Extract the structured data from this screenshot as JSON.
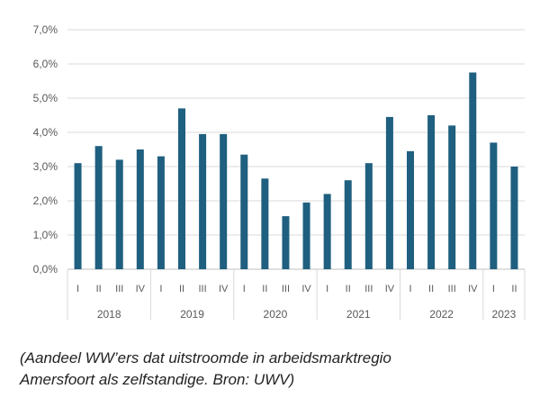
{
  "chart_data": {
    "type": "bar",
    "ytick_labels": [
      "0,0%",
      "1,0%",
      "2,0%",
      "3,0%",
      "4,0%",
      "5,0%",
      "6,0%",
      "7,0%"
    ],
    "ylim": [
      0,
      7
    ],
    "grid": true,
    "bar_color": "#1f5f7f",
    "groups": [
      {
        "label": "2018",
        "categories": [
          "I",
          "II",
          "III",
          "IV"
        ],
        "values": [
          3.1,
          3.6,
          3.2,
          3.5
        ]
      },
      {
        "label": "2019",
        "categories": [
          "I",
          "II",
          "III",
          "IV"
        ],
        "values": [
          3.3,
          4.7,
          3.95,
          3.95
        ]
      },
      {
        "label": "2020",
        "categories": [
          "I",
          "II",
          "III",
          "IV"
        ],
        "values": [
          3.35,
          2.65,
          1.55,
          1.95
        ]
      },
      {
        "label": "2021",
        "categories": [
          "I",
          "II",
          "III",
          "IV"
        ],
        "values": [
          2.2,
          2.6,
          3.1,
          4.45
        ]
      },
      {
        "label": "2022",
        "categories": [
          "I",
          "II",
          "III",
          "IV"
        ],
        "values": [
          3.45,
          4.5,
          4.2,
          5.75
        ]
      },
      {
        "label": "2023",
        "categories": [
          "I",
          "II"
        ],
        "values": [
          3.7,
          3.0
        ]
      }
    ]
  },
  "caption": {
    "line1": "(Aandeel WW’ers dat uitstroomde in arbeidsmarktregio",
    "line2": "Amersfoort als zelfstandige. Bron: UWV)"
  }
}
